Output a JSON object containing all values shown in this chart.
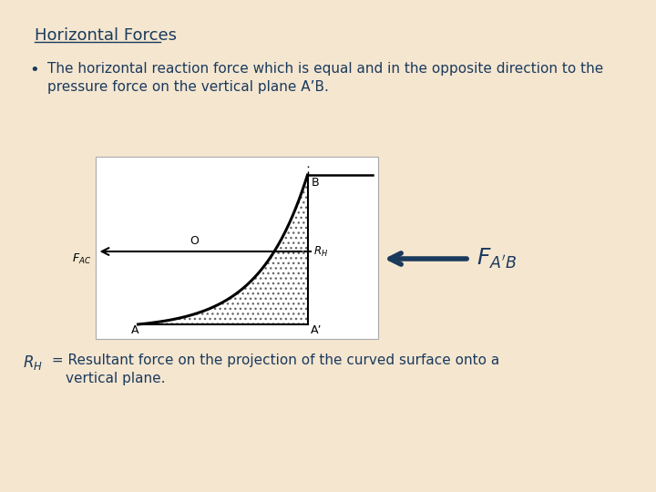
{
  "bg_color": "#f5e6d0",
  "text_color": "#1a3a5c",
  "title": "Horizontal Forces",
  "bullet_line1": "The horizontal reaction force which is equal and in the opposite direction to the",
  "bullet_line2": "pressure force on the vertical plane A’B.",
  "bottom_rh": "$R_H$",
  "bottom_line1": " = Resultant force on the projection of the curved surface onto a",
  "bottom_line2": "vertical plane.",
  "diagram_bg": "#ffffff",
  "arrow_color": "#1a3a5c",
  "o_label": "O",
  "a_label": "A",
  "aprime_label": "A’",
  "b_label": "B"
}
